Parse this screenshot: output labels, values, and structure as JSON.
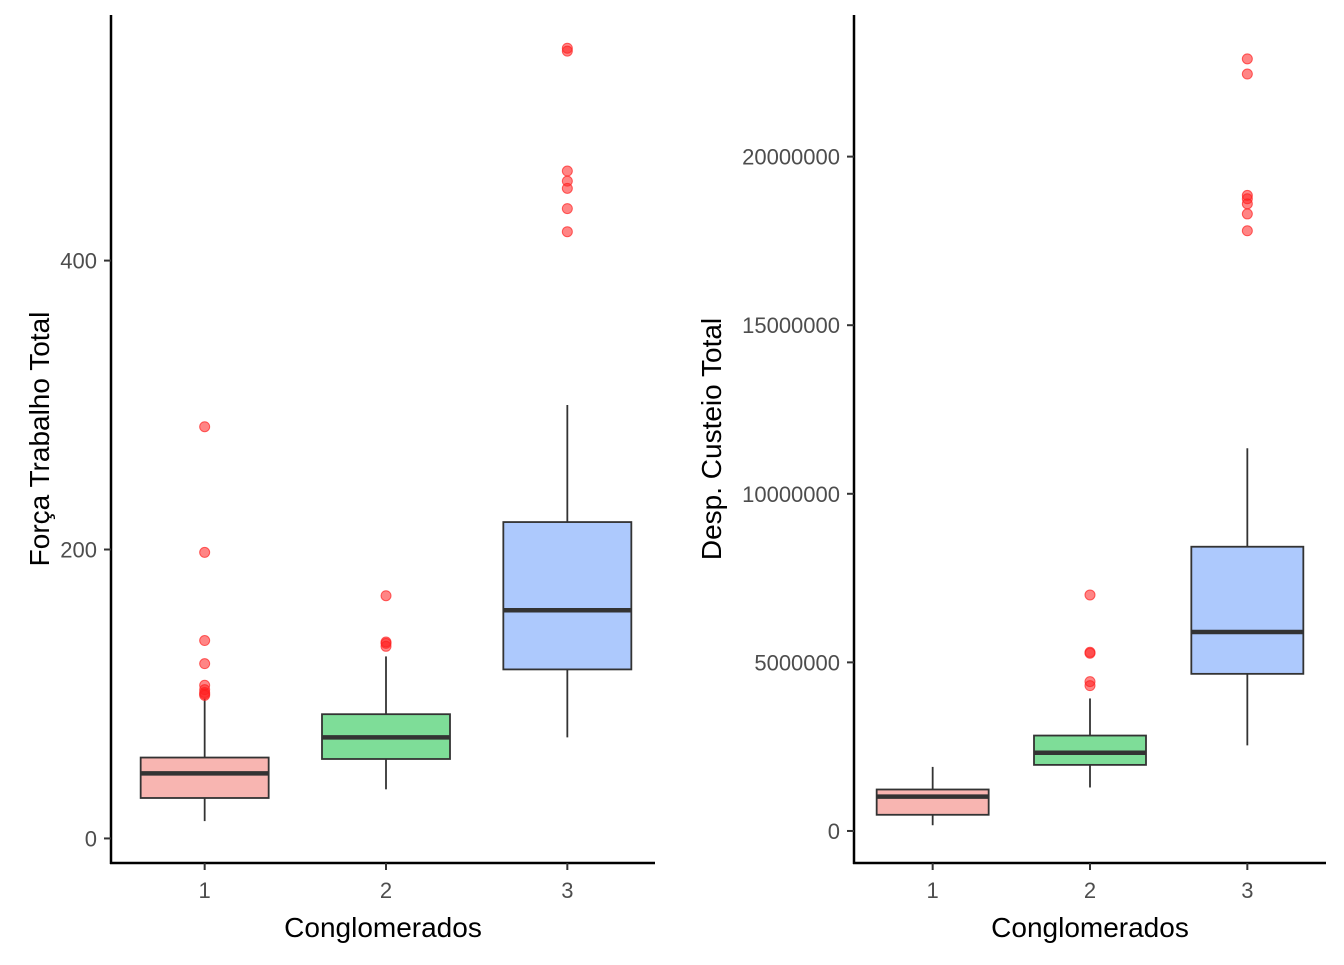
{
  "chart_data": [
    {
      "type": "box",
      "xlabel": "Conglomerados",
      "ylabel": "Força Trabalho Total",
      "categories": [
        "1",
        "2",
        "3"
      ],
      "yticks": [
        0,
        200,
        400
      ],
      "ylim": [
        -17,
        570
      ],
      "boxes": [
        {
          "category": "1",
          "whisker_low": 12,
          "q1": 28,
          "median": 45,
          "q3": 56,
          "whisker_high": 97,
          "outliers": [
            285,
            198,
            137,
            121,
            106,
            103,
            101,
            100,
            99
          ]
        },
        {
          "category": "2",
          "whisker_low": 34,
          "q1": 55,
          "median": 70,
          "q3": 86,
          "whisker_high": 126,
          "outliers": [
            168,
            136,
            135,
            133
          ]
        },
        {
          "category": "3",
          "whisker_low": 70,
          "q1": 117,
          "median": 158,
          "q3": 219,
          "whisker_high": 300,
          "outliers": [
            547,
            545,
            462,
            455,
            450,
            436,
            420
          ]
        }
      ],
      "colors": {
        "1": "#f8b5b1",
        "2": "#7edd98",
        "3": "#adc9fd",
        "outlier": "#ff2020",
        "median": "#333333"
      },
      "grid": false,
      "legend": "none"
    },
    {
      "type": "box",
      "xlabel": "Conglomerados",
      "ylabel": "Desp. Custeio Total",
      "categories": [
        "1",
        "2",
        "3"
      ],
      "yticks": [
        0,
        5000000,
        10000000,
        15000000,
        20000000
      ],
      "ylim": [
        -950000,
        24200000
      ],
      "boxes": [
        {
          "category": "1",
          "whisker_low": 170000,
          "q1": 480000,
          "median": 1020000,
          "q3": 1230000,
          "whisker_high": 1900000,
          "outliers": []
        },
        {
          "category": "2",
          "whisker_low": 1290000,
          "q1": 1960000,
          "median": 2320000,
          "q3": 2830000,
          "whisker_high": 3930000,
          "outliers": [
            7000000,
            5300000,
            5270000,
            4430000,
            4310000
          ]
        },
        {
          "category": "3",
          "whisker_low": 2540000,
          "q1": 4660000,
          "median": 5900000,
          "q3": 8430000,
          "whisker_high": 11350000,
          "outliers": [
            22900000,
            22450000,
            18850000,
            18750000,
            18600000,
            18300000,
            17800000
          ]
        }
      ],
      "colors": {
        "1": "#f8b5b1",
        "2": "#7edd98",
        "3": "#adc9fd",
        "outlier": "#ff2020",
        "median": "#333333"
      },
      "grid": false,
      "legend": "none"
    }
  ]
}
